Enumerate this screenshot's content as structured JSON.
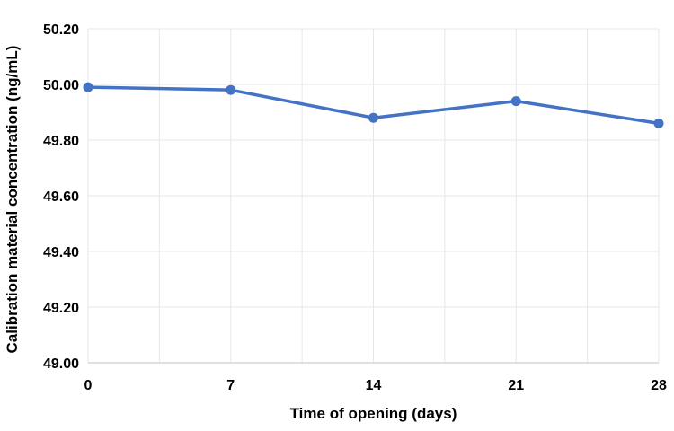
{
  "chart_data": {
    "type": "line",
    "title": "",
    "xlabel": "Time of opening (days)",
    "ylabel": "Calibration material concentration (ng/mL)",
    "x": [
      0,
      7,
      14,
      21,
      28
    ],
    "series": [
      {
        "name": "Calibration material concentration (ng/mL)",
        "values": [
          49.99,
          49.98,
          49.88,
          49.94,
          49.86
        ]
      }
    ],
    "xticks": [
      "0",
      "7",
      "14",
      "21",
      "28"
    ],
    "xtick_values": [
      0,
      7,
      14,
      21,
      28
    ],
    "yticks": [
      "50.20",
      "50.00",
      "49.80",
      "49.60",
      "49.40",
      "49.20",
      "49.00"
    ],
    "ytick_values": [
      50.2,
      50.0,
      49.8,
      49.6,
      49.4,
      49.2,
      49.0
    ],
    "xlim": [
      0,
      28
    ],
    "ylim": [
      49.0,
      50.2
    ],
    "x_minor_grid_step": 3.5,
    "grid": true,
    "legend_position": "none",
    "colors": {
      "line": "#4472C4",
      "marker": "#4472C4",
      "grid": "#E7E7E7",
      "axis_line": "#D6D6D6",
      "text": "#000000",
      "background": "#FFFFFF"
    }
  }
}
